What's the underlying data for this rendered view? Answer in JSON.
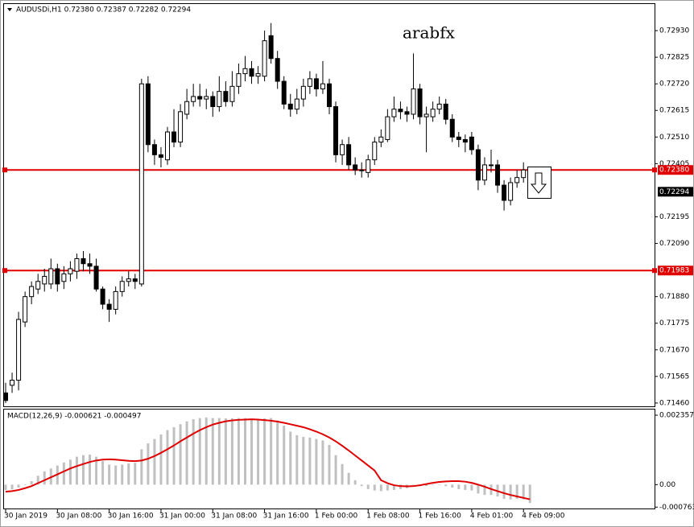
{
  "chart_data": [
    {
      "type": "candlestick",
      "title": "AUDUSDi,H1  0.72380 0.72387 0.72282 0.72294",
      "watermark": "arabfx",
      "categories": [
        "30 Jan 2019",
        null,
        null,
        null,
        null,
        null,
        null,
        null,
        "30 Jan 08:00",
        null,
        null,
        null,
        null,
        null,
        null,
        null,
        "30 Jan 16:00",
        null,
        null,
        null,
        null,
        null,
        null,
        null,
        "31 Jan 00:00",
        null,
        null,
        null,
        null,
        null,
        null,
        null,
        "31 Jan 08:00",
        null,
        null,
        null,
        null,
        null,
        null,
        null,
        "31 Jan 16:00",
        null,
        null,
        null,
        null,
        null,
        null,
        null,
        "1 Feb 00:00",
        null,
        null,
        null,
        null,
        null,
        null,
        null,
        "1 Feb 08:00",
        null,
        null,
        null,
        null,
        null,
        null,
        null,
        "1 Feb 16:00",
        null,
        null,
        null,
        null,
        null,
        null,
        null,
        "4 Feb 01:00",
        null,
        null,
        null,
        null,
        null,
        null,
        null,
        "4 Feb 09:00",
        null
      ],
      "candles": [
        [
          0.715,
          0.7154,
          0.7146,
          0.7147
        ],
        [
          0.7153,
          0.7158,
          0.715,
          0.7155
        ],
        [
          0.7155,
          0.7182,
          0.7151,
          0.7179
        ],
        [
          0.7178,
          0.719,
          0.7176,
          0.7188
        ],
        [
          0.7188,
          0.7194,
          0.7185,
          0.7192
        ],
        [
          0.7191,
          0.7197,
          0.7189,
          0.7194
        ],
        [
          0.7193,
          0.7199,
          0.719,
          0.7196
        ],
        [
          0.7193,
          0.7203,
          0.7191,
          0.7199
        ],
        [
          0.7199,
          0.7201,
          0.719,
          0.7193
        ],
        [
          0.7194,
          0.72,
          0.7191,
          0.7197
        ],
        [
          0.7197,
          0.7202,
          0.7194,
          0.7199
        ],
        [
          0.7198,
          0.7205,
          0.7195,
          0.7203
        ],
        [
          0.7203,
          0.7206,
          0.7198,
          0.7201
        ],
        [
          0.7201,
          0.7205,
          0.7197,
          0.72
        ],
        [
          0.72,
          0.7203,
          0.719,
          0.7191
        ],
        [
          0.7191,
          0.7192,
          0.7183,
          0.7185
        ],
        [
          0.7185,
          0.7187,
          0.7178,
          0.7183
        ],
        [
          0.7183,
          0.7192,
          0.7181,
          0.719
        ],
        [
          0.719,
          0.7196,
          0.7188,
          0.7194
        ],
        [
          0.7194,
          0.7198,
          0.7192,
          0.7195
        ],
        [
          0.7195,
          0.7197,
          0.7191,
          0.7194
        ],
        [
          0.7193,
          0.7274,
          0.7192,
          0.7272
        ],
        [
          0.7272,
          0.7275,
          0.7245,
          0.7248
        ],
        [
          0.7248,
          0.725,
          0.724,
          0.7244
        ],
        [
          0.7244,
          0.7247,
          0.7239,
          0.7243
        ],
        [
          0.7242,
          0.7255,
          0.724,
          0.7253
        ],
        [
          0.7253,
          0.7262,
          0.7247,
          0.7249
        ],
        [
          0.7249,
          0.7264,
          0.7247,
          0.7261
        ],
        [
          0.726,
          0.727,
          0.7258,
          0.7265
        ],
        [
          0.7265,
          0.7272,
          0.7263,
          0.7267
        ],
        [
          0.7267,
          0.7272,
          0.7263,
          0.7266
        ],
        [
          0.7266,
          0.727,
          0.7262,
          0.7267
        ],
        [
          0.7267,
          0.7269,
          0.7259,
          0.7263
        ],
        [
          0.7263,
          0.7275,
          0.7261,
          0.7269
        ],
        [
          0.7269,
          0.7273,
          0.7263,
          0.7265
        ],
        [
          0.7265,
          0.7277,
          0.7263,
          0.7271
        ],
        [
          0.7271,
          0.728,
          0.7268,
          0.7276
        ],
        [
          0.7276,
          0.7283,
          0.7273,
          0.7278
        ],
        [
          0.7278,
          0.7281,
          0.7272,
          0.7275
        ],
        [
          0.7275,
          0.7279,
          0.7272,
          0.7276
        ],
        [
          0.7275,
          0.7293,
          0.7273,
          0.7289
        ],
        [
          0.7291,
          0.7296,
          0.728,
          0.7282
        ],
        [
          0.7282,
          0.7285,
          0.727,
          0.7273
        ],
        [
          0.7273,
          0.7275,
          0.7262,
          0.7264
        ],
        [
          0.7264,
          0.7268,
          0.7259,
          0.7262
        ],
        [
          0.7262,
          0.727,
          0.726,
          0.7266
        ],
        [
          0.7266,
          0.7274,
          0.7263,
          0.7271
        ],
        [
          0.7271,
          0.7277,
          0.7268,
          0.7274
        ],
        [
          0.7274,
          0.7276,
          0.7267,
          0.727
        ],
        [
          0.727,
          0.7281,
          0.7268,
          0.7272
        ],
        [
          0.7272,
          0.7274,
          0.726,
          0.7263
        ],
        [
          0.7263,
          0.7265,
          0.7241,
          0.7244
        ],
        [
          0.7244,
          0.725,
          0.724,
          0.7248
        ],
        [
          0.7248,
          0.7251,
          0.7238,
          0.724
        ],
        [
          0.724,
          0.7243,
          0.7236,
          0.7238
        ],
        [
          0.7238,
          0.7241,
          0.7235,
          0.7238
        ],
        [
          0.7237,
          0.7244,
          0.7235,
          0.7242
        ],
        [
          0.7242,
          0.7251,
          0.724,
          0.7249
        ],
        [
          0.7249,
          0.7254,
          0.7247,
          0.7251
        ],
        [
          0.725,
          0.7262,
          0.7249,
          0.7259
        ],
        [
          0.7259,
          0.7267,
          0.7257,
          0.7262
        ],
        [
          0.7262,
          0.7265,
          0.7258,
          0.7261
        ],
        [
          0.7261,
          0.7263,
          0.7257,
          0.726
        ],
        [
          0.726,
          0.7284,
          0.7258,
          0.727
        ],
        [
          0.727,
          0.7272,
          0.7256,
          0.7259
        ],
        [
          0.7259,
          0.7263,
          0.7245,
          0.726
        ],
        [
          0.7259,
          0.7265,
          0.7257,
          0.7262
        ],
        [
          0.7262,
          0.7267,
          0.726,
          0.7264
        ],
        [
          0.7264,
          0.7266,
          0.7256,
          0.7258
        ],
        [
          0.7258,
          0.726,
          0.7249,
          0.7251
        ],
        [
          0.7251,
          0.7253,
          0.7247,
          0.725
        ],
        [
          0.725,
          0.7252,
          0.7245,
          0.7249
        ],
        [
          0.7251,
          0.7253,
          0.7244,
          0.7246
        ],
        [
          0.7246,
          0.7248,
          0.723,
          0.7234
        ],
        [
          0.7234,
          0.7243,
          0.7232,
          0.724
        ],
        [
          0.724,
          0.7246,
          0.7237,
          0.724
        ],
        [
          0.724,
          0.7242,
          0.7229,
          0.7232
        ],
        [
          0.7232,
          0.7234,
          0.7222,
          0.7226
        ],
        [
          0.7226,
          0.7235,
          0.7224,
          0.7233
        ],
        [
          0.7233,
          0.7238,
          0.7231,
          0.7235
        ],
        [
          0.7235,
          0.7241,
          0.7233,
          0.7238
        ],
        [
          0.7238,
          0.72387,
          0.72282,
          0.72294
        ]
      ],
      "bull_color": "#ffffff",
      "bear_color": "#000000",
      "ylim": [
        0.71447,
        0.73035
      ],
      "yticks": [
        {
          "value": 0.7293,
          "label": "0.72930"
        },
        0.72825,
        {
          "value": 0.7272,
          "label": "0.72720"
        },
        0.72615,
        {
          "value": 0.7251,
          "label": "0.72510"
        },
        0.72405,
        0.72195,
        {
          "value": 0.7209,
          "label": "0.72090"
        },
        {
          "value": 0.7188,
          "label": "0.71880"
        },
        0.71775,
        {
          "value": 0.7167,
          "label": "0.71670"
        },
        0.71565,
        {
          "value": 0.7146,
          "label": "0.71460"
        }
      ],
      "hlines": [
        {
          "value": 0.7238,
          "label": "0.72380",
          "color": "#e00000"
        },
        {
          "value": 0.71983,
          "label": "0.71983",
          "color": "#e00000"
        }
      ],
      "price": {
        "value": 0.72294,
        "label": "0.72294",
        "color": "#000000"
      }
    },
    {
      "type": "macd",
      "title": "MACD(12,26,9) -0.000621 -0.000497",
      "histogram": {
        "color": "#c0c0c0",
        "values": [
          -0.00018,
          -0.00016,
          -0.0001,
          -2e-05,
          0.00012,
          0.0003,
          0.00045,
          0.00055,
          0.00065,
          0.00075,
          0.00085,
          0.00095,
          0.001,
          0.00102,
          0.00095,
          0.0008,
          0.00068,
          0.00065,
          0.00068,
          0.00072,
          0.00074,
          0.0012,
          0.0014,
          0.00155,
          0.0017,
          0.00185,
          0.00195,
          0.00205,
          0.00215,
          0.00222,
          0.00226,
          0.00228,
          0.00226,
          0.00226,
          0.00225,
          0.00225,
          0.00226,
          0.00226,
          0.00224,
          0.00222,
          0.00225,
          0.00226,
          0.00218,
          0.002,
          0.0018,
          0.00168,
          0.00162,
          0.0016,
          0.00155,
          0.0015,
          0.00135,
          0.001,
          0.0007,
          0.0004,
          0.00015,
          -5e-05,
          -0.00015,
          -0.0002,
          -0.00022,
          -0.0002,
          -0.00018,
          -0.00015,
          -0.00012,
          0.0,
          -5e-05,
          -5e-05,
          -2e-05,
          0.0,
          -5e-05,
          -0.0001,
          -0.00015,
          -0.00018,
          -0.0002,
          -0.0003,
          -0.00035,
          -0.00035,
          -0.0004,
          -0.00048,
          -0.0005,
          -0.00048,
          -0.0005,
          -0.000621
        ]
      },
      "signal": {
        "color": "#e00000",
        "values": [
          -0.00024,
          -0.00022,
          -0.00018,
          -0.00012,
          -5e-05,
          5e-05,
          0.00015,
          0.00025,
          0.00035,
          0.00045,
          0.00055,
          0.00063,
          0.0007,
          0.00077,
          0.00082,
          0.00085,
          0.00086,
          0.00085,
          0.00083,
          0.00081,
          0.0008,
          0.00082,
          0.00088,
          0.00097,
          0.00108,
          0.0012,
          0.00133,
          0.00147,
          0.0016,
          0.00173,
          0.00185,
          0.00195,
          0.00204,
          0.0021,
          0.00215,
          0.00218,
          0.0022,
          0.00221,
          0.00222,
          0.00221,
          0.00219,
          0.00217,
          0.00214,
          0.0021,
          0.00205,
          0.002,
          0.00195,
          0.00188,
          0.0018,
          0.00171,
          0.0016,
          0.00147,
          0.00132,
          0.00116,
          0.00099,
          0.00082,
          0.00065,
          0.00048,
          0.00015,
          5e-05,
          -2e-05,
          -5e-05,
          -6e-05,
          -5e-05,
          -2e-05,
          2e-05,
          6e-05,
          9e-05,
          0.00011,
          0.00012,
          0.00012,
          0.0001,
          6e-05,
          0.0,
          -7e-05,
          -0.00015,
          -0.00022,
          -0.00029,
          -0.00035,
          -0.0004,
          -0.00045,
          -0.000497
        ]
      },
      "ylim": [
        -0.00081,
        0.00255
      ],
      "yticks": [
        0.002357,
        {
          "value": 0,
          "label": "0.00"
        },
        -0.000763
      ]
    }
  ]
}
